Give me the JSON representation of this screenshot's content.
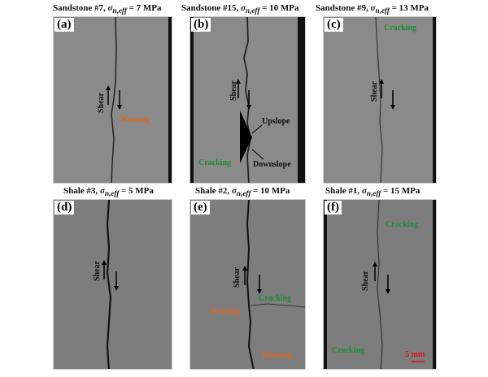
{
  "panels": [
    {
      "label": "(a)",
      "title_prefix": "Sandstone #7, ",
      "sigma": "σ",
      "sub": "n,eff",
      "title_suffix": " = 7 MPa",
      "annotations": {
        "shear": "Shear",
        "wearing": "Wearing"
      }
    },
    {
      "label": "(b)",
      "title_prefix": "Sandstone #15, ",
      "sigma": "σ",
      "sub": "n,eff",
      "title_suffix": " = 10 MPa",
      "annotations": {
        "shear": "Shear",
        "upslope": "Upslope",
        "downslope": "Downslope",
        "cracking": "Cracking"
      }
    },
    {
      "label": "(c)",
      "title_prefix": "Sandstone #9, ",
      "sigma": "σ",
      "sub": "n,eff",
      "title_suffix": " = 13 MPa",
      "annotations": {
        "shear": "Shear",
        "cracking": "Cracking"
      }
    },
    {
      "label": "(d)",
      "title_prefix": "Shale #3, ",
      "sigma": "σ",
      "sub": "n,eff",
      "title_suffix": " = 5 MPa",
      "annotations": {
        "shear": "Shear"
      }
    },
    {
      "label": "(e)",
      "title_prefix": "Shale #2, ",
      "sigma": "σ",
      "sub": "n,eff",
      "title_suffix": " = 10 MPa",
      "annotations": {
        "shear": "Shear",
        "cracking": "Cracking",
        "wearing_1": "Wearing",
        "wearing_2": "Wearing"
      }
    },
    {
      "label": "(f)",
      "title_prefix": "Shale #1, ",
      "sigma": "σ",
      "sub": "n,eff",
      "title_suffix": " = 15 MPa",
      "annotations": {
        "shear": "Shear",
        "cracking_1": "Cracking",
        "cracking_2": "Cracking",
        "scale_bar": "5 mm"
      }
    }
  ],
  "colors": {
    "cracking": "#1f8a3a",
    "wearing": "#e0651e",
    "scale_bar": "#e01010"
  }
}
